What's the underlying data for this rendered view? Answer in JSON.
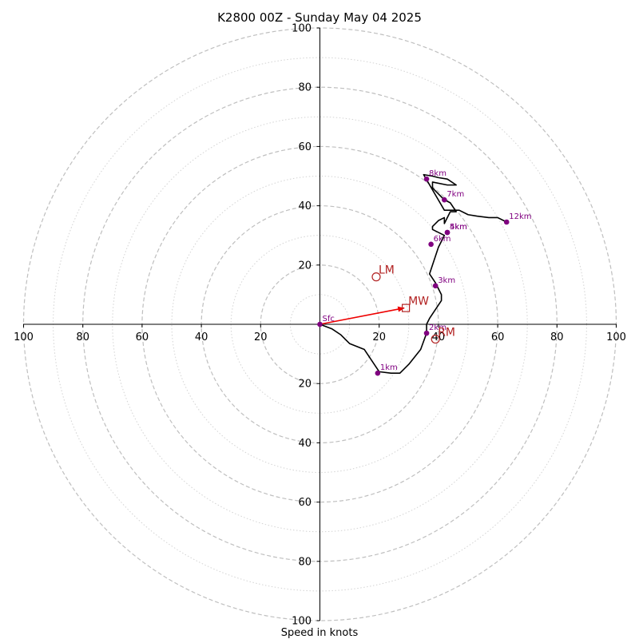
{
  "chart_data": {
    "type": "line",
    "subtype": "hodograph",
    "title": "K2800 00Z - Sunday May 04 2025",
    "xlabel": "Speed in knots",
    "ylabel": "",
    "range": [
      -100,
      100
    ],
    "rings_major": [
      20,
      40,
      60,
      80,
      100
    ],
    "rings_minor": [
      10,
      30,
      50,
      70,
      90
    ],
    "tick_labels": {
      "x_left": [
        "100",
        "80",
        "60",
        "40",
        "20"
      ],
      "x_right": [
        "20",
        "40",
        "60",
        "80",
        "100"
      ],
      "y_top": [
        "20",
        "40",
        "60",
        "80",
        "100"
      ],
      "y_bottom": [
        "20",
        "40",
        "60",
        "80",
        "100"
      ]
    },
    "trace": {
      "color": "#000000",
      "u": [
        0,
        4,
        7,
        10,
        15,
        20,
        24,
        27,
        30,
        34,
        36,
        36,
        37,
        39,
        41,
        41,
        40,
        39,
        37,
        38,
        39,
        40,
        41,
        42,
        38,
        38,
        40,
        42,
        42,
        44,
        46,
        44,
        42,
        40,
        38,
        38,
        43,
        46,
        43,
        40,
        38,
        35,
        42,
        47,
        50,
        53,
        57,
        60,
        63
      ],
      "v": [
        0,
        -1.5,
        -3.5,
        -6.5,
        -8.5,
        -16,
        -16.5,
        -16.5,
        -13.5,
        -8.5,
        -3,
        0,
        2,
        5,
        8,
        10,
        12,
        14,
        17,
        20,
        23,
        26,
        28,
        30,
        32,
        33,
        35,
        36,
        34,
        38,
        38,
        41,
        42,
        44,
        46,
        48,
        47,
        47,
        49,
        49.5,
        50,
        50.5,
        38.5,
        38.5,
        37,
        36.5,
        36,
        36,
        34.5
      ]
    },
    "height_markers": {
      "color": "#800080",
      "points": [
        {
          "label": "Sfc",
          "u": 0,
          "v": 0
        },
        {
          "label": "1km",
          "u": 19.5,
          "v": -16.5
        },
        {
          "label": "2km",
          "u": 36,
          "v": -3
        },
        {
          "label": "3km",
          "u": 39,
          "v": 13
        },
        {
          "label": "4km",
          "u": 43,
          "v": 31
        },
        {
          "label": "5km",
          "u": 43,
          "v": 31
        },
        {
          "label": "6km",
          "u": 37.5,
          "v": 27
        },
        {
          "label": "7km",
          "u": 42,
          "v": 42
        },
        {
          "label": "8km",
          "u": 36,
          "v": 49
        },
        {
          "label": "12km",
          "u": 63,
          "v": 34.5
        }
      ]
    },
    "storm_motion": {
      "color": "#b22222",
      "points": [
        {
          "label": "LM",
          "u": 19,
          "v": 16,
          "marker": "circle"
        },
        {
          "label": "RM",
          "u": 39,
          "v": -5,
          "marker": "circle"
        },
        {
          "label": "MW",
          "u": 29,
          "v": 5.5,
          "marker": "square"
        }
      ],
      "mean_wind_arrow": {
        "color": "#ee0000",
        "from_u": 0,
        "from_v": 0,
        "to_u": 28.5,
        "to_v": 5.5
      }
    }
  }
}
